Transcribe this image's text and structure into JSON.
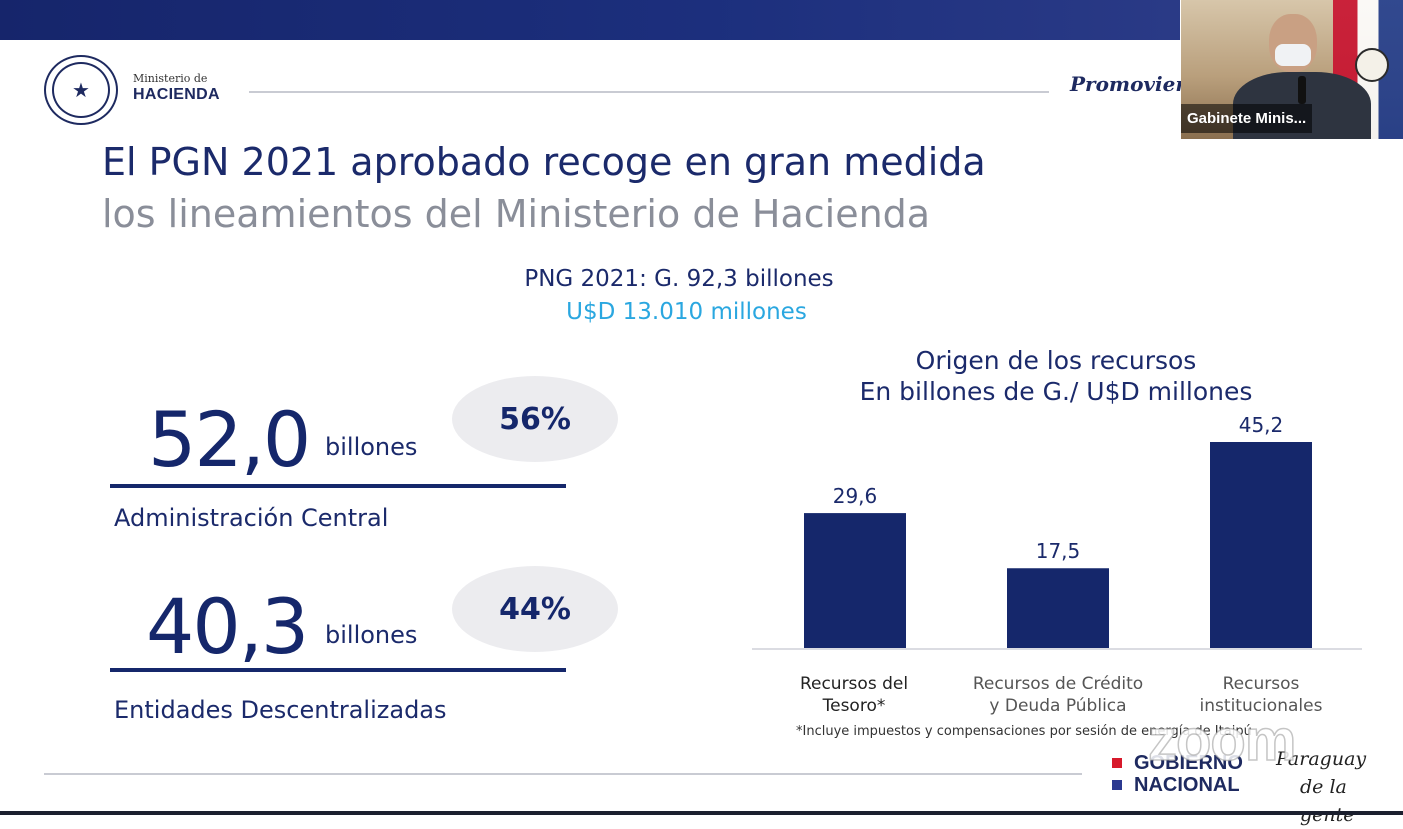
{
  "header": {
    "ministry_small": "Ministerio de",
    "ministry_name": "HACIENDA",
    "tagline": "Promoviendo"
  },
  "title": {
    "line1": "El PGN 2021 aprobado recoge en gran medida",
    "line2": "los lineamientos del Ministerio de Hacienda"
  },
  "budget": {
    "line1": "PNG 2021: G. 92,3 billones",
    "line2": "U$D 13.010 millones"
  },
  "stats": [
    {
      "value": "52,0",
      "unit": "billones",
      "percent": "56%",
      "label": "Administración Central"
    },
    {
      "value": "40,3",
      "unit": "billones",
      "percent": "44%",
      "label": "Entidades Descentralizadas"
    }
  ],
  "chart_data": {
    "type": "bar",
    "title": "Origen de los recursos",
    "subtitle": "En billones de G./ U$D millones",
    "categories": [
      [
        "Recursos del",
        "Tesoro*"
      ],
      [
        "Recursos de Crédito",
        "y Deuda Pública"
      ],
      [
        "Recursos",
        "institucionales"
      ]
    ],
    "values": [
      29.6,
      17.5,
      45.2
    ],
    "value_labels": [
      "29,6",
      "17,5",
      "45,2"
    ],
    "ylim": [
      0,
      45.2
    ],
    "bar_color": "#15276b",
    "grid": false
  },
  "footnote": "*Incluye impuestos y compensaciones por sesión de energía de Itaipú",
  "footer": {
    "gobierno_line1": "GOBIERNO",
    "gobierno_line2": "NACIONAL",
    "paraguay_line1": "Paraguay",
    "paraguay_line2": "de la gente",
    "square_red": "#d7192b",
    "square_blue": "#2b3990"
  },
  "video": {
    "participant_name": "Gabinete Minis..."
  },
  "watermark": "zoom"
}
